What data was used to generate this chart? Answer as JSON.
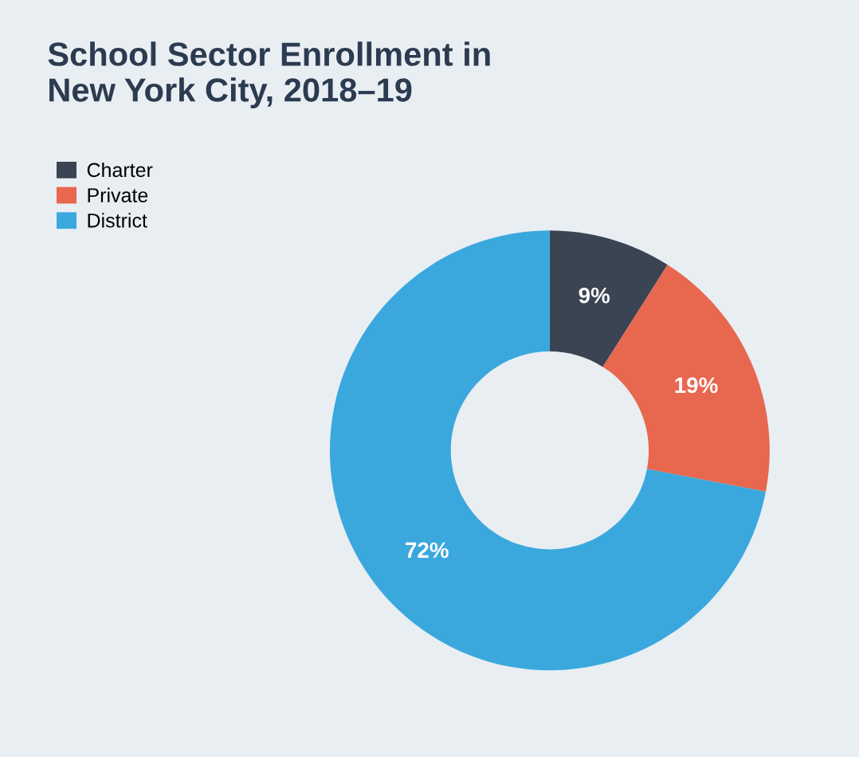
{
  "chart_data": {
    "type": "donut",
    "title": "School Sector Enrollment in\nNew York City, 2018–19",
    "categories": [
      "Charter",
      "Private",
      "District"
    ],
    "values": [
      9,
      19,
      72
    ],
    "colors": [
      "#3b4453",
      "#e8674f",
      "#3aa8dd"
    ],
    "value_labels": [
      "9%",
      "19%",
      "72%"
    ],
    "legend": "top left"
  }
}
